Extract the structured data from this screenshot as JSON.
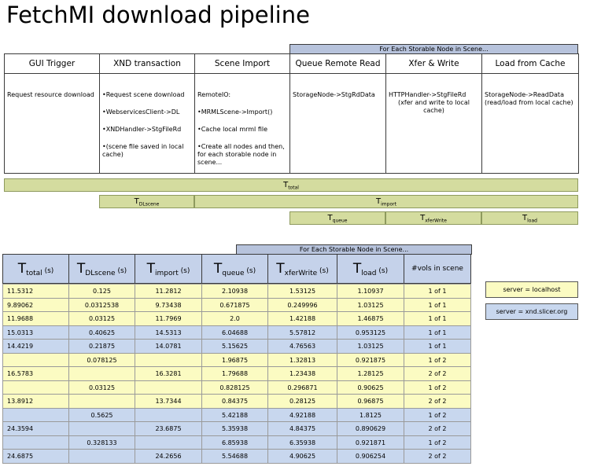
{
  "title": "FetchMI download pipeline",
  "pipeline": {
    "banner": "For Each Storable Node in Scene...",
    "stages": [
      {
        "name": "GUI Trigger",
        "lines": [
          "Request resource download"
        ]
      },
      {
        "name": "XND transaction",
        "lines": [
          "•Request scene download",
          "•WebservicesClient->DL",
          "•XNDHandler->StgFileRd",
          "•(scene file saved in local cache)"
        ]
      },
      {
        "name": "Scene Import",
        "lines": [
          "RemoteIO:",
          "•MRMLScene->Import()",
          "•Cache local mrml file",
          "•Create all nodes and then, for each storable node in scene..."
        ]
      },
      {
        "name": "Queue Remote Read",
        "lines": [
          "StorageNode->StgRdData"
        ]
      },
      {
        "name": "Xfer & Write",
        "lines": [
          "HTTPHandler->StgFileRd",
          "(xfer and write to local cache)"
        ]
      },
      {
        "name": "Load from Cache",
        "lines": [
          "StorageNode->ReadData",
          "(read/load from local cache)"
        ]
      }
    ],
    "timings": [
      {
        "symbol": "T",
        "subscript": "total"
      },
      {
        "symbol": "T",
        "subscript": "DLscene"
      },
      {
        "symbol": "T",
        "subscript": "import"
      },
      {
        "symbol": "T",
        "subscript": "queue"
      },
      {
        "symbol": "T",
        "subscript": "xferWrite"
      },
      {
        "symbol": "T",
        "subscript": "load"
      }
    ]
  },
  "table": {
    "banner": "For Each Storable Node in Scene...",
    "columns": [
      {
        "symbol": "T",
        "subscript": "total",
        "unit": "(s)"
      },
      {
        "symbol": "T",
        "subscript": "DLscene",
        "unit": "(s)"
      },
      {
        "symbol": "T",
        "subscript": "import",
        "unit": "(s)"
      },
      {
        "symbol": "T",
        "subscript": "queue",
        "unit": "(s)"
      },
      {
        "symbol": "T",
        "subscript": "xferWrite",
        "unit": "(s)"
      },
      {
        "symbol": "T",
        "subscript": "load",
        "unit": "(s)"
      },
      {
        "text": "#vols in scene"
      }
    ],
    "rows": [
      {
        "color": "#fbfbc2",
        "cells": [
          "11.5312",
          "0.125",
          "11.2812",
          "2.10938",
          "1.53125",
          "1.10937",
          "1 of 1"
        ]
      },
      {
        "color": "#fbfbc2",
        "cells": [
          "9.89062",
          "0.0312538",
          "9.73438",
          "0.671875",
          "0.249996",
          "1.03125",
          "1 of 1"
        ]
      },
      {
        "color": "#fbfbc2",
        "cells": [
          "11.9688",
          "0.03125",
          "11.7969",
          "2.0",
          "1.42188",
          "1.46875",
          "1 of 1"
        ]
      },
      {
        "color": "#c8d7ee",
        "cells": [
          "15.0313",
          "0.40625",
          "14.5313",
          "6.04688",
          "5.57812",
          "0.953125",
          "1 of 1"
        ]
      },
      {
        "color": "#c8d7ee",
        "cells": [
          "14.4219",
          "0.21875",
          "14.0781",
          "5.15625",
          "4.76563",
          "1.03125",
          "1 of 1"
        ]
      },
      {
        "color": "#fbfbc2",
        "cells": [
          null,
          "0.078125",
          null,
          "1.96875",
          "1.32813",
          "0.921875",
          "1 of 2"
        ]
      },
      {
        "color": "#fbfbc2",
        "cells": [
          "16.5783",
          null,
          "16.3281",
          "1.79688",
          "1.23438",
          "1.28125",
          "2 of 2"
        ]
      },
      {
        "color": "#fbfbc2",
        "cells": [
          null,
          "0.03125",
          null,
          "0.828125",
          "0.296871",
          "0.90625",
          "1 of 2"
        ]
      },
      {
        "color": "#fbfbc2",
        "cells": [
          "13.8912",
          null,
          "13.7344",
          "0.84375",
          "0.28125",
          "0.96875",
          "2 of 2"
        ]
      },
      {
        "color": "#c8d7ee",
        "cells": [
          null,
          "0.5625",
          null,
          "5.42188",
          "4.92188",
          "1.8125",
          "1 of 2"
        ]
      },
      {
        "color": "#c8d7ee",
        "cells": [
          "24.3594",
          null,
          "23.6875",
          "5.35938",
          "4.84375",
          "0.890629",
          "2 of 2"
        ]
      },
      {
        "color": "#c8d7ee",
        "cells": [
          null,
          "0.328133",
          null,
          "6.85938",
          "6.35938",
          "0.921871",
          "1 of 2"
        ]
      },
      {
        "color": "#c8d7ee",
        "cells": [
          "24.6875",
          null,
          "24.2656",
          "5.54688",
          "4.90625",
          "0.906254",
          "2 of 2"
        ]
      }
    ]
  },
  "legend": [
    {
      "label": "server = localhost",
      "color": "#fbfbc2"
    },
    {
      "label": "server = xnd.slicer.org",
      "color": "#c8d7ee"
    }
  ]
}
